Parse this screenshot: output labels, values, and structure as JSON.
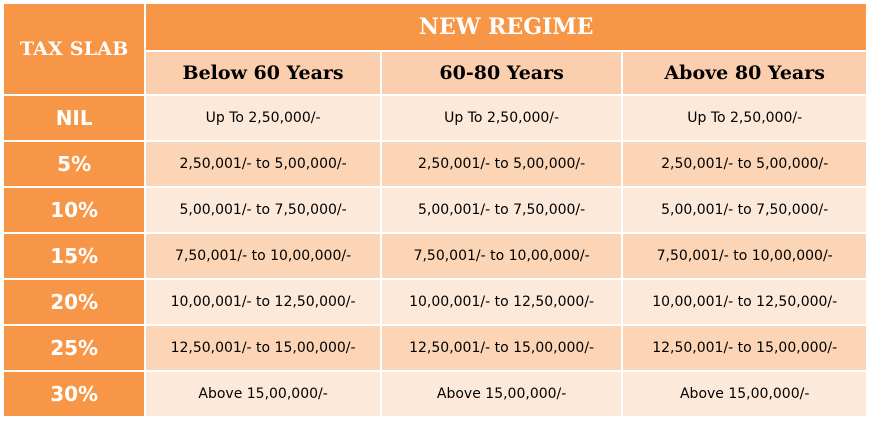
{
  "header": {
    "tax_slab": "TAX SLAB",
    "regime": "NEW REGIME",
    "age_groups": [
      "Below 60 Years",
      "60-80 Years",
      "Above 80 Years"
    ]
  },
  "colors": {
    "header_orange": "#f79646",
    "age_header_peach": "#fbcfae",
    "row_light": "#fde9d9",
    "row_dark": "#fbd5b5"
  },
  "rows": [
    {
      "slab": "NIL",
      "cells": [
        "Up To 2,50,000/-",
        "Up To 2,50,000/-",
        "Up To 2,50,000/-"
      ]
    },
    {
      "slab": "5%",
      "cells": [
        "2,50,001/- to 5,00,000/-",
        "2,50,001/- to 5,00,000/-",
        "2,50,001/- to 5,00,000/-"
      ]
    },
    {
      "slab": "10%",
      "cells": [
        "5,00,001/- to 7,50,000/-",
        "5,00,001/- to 7,50,000/-",
        "5,00,001/- to 7,50,000/-"
      ]
    },
    {
      "slab": "15%",
      "cells": [
        "7,50,001/- to 10,00,000/-",
        "7,50,001/- to 10,00,000/-",
        "7,50,001/- to 10,00,000/-"
      ]
    },
    {
      "slab": "20%",
      "cells": [
        "10,00,001/- to 12,50,000/-",
        "10,00,001/- to 12,50,000/-",
        "10,00,001/- to 12,50,000/-"
      ]
    },
    {
      "slab": "25%",
      "cells": [
        "12,50,001/- to 15,00,000/-",
        "12,50,001/- to 15,00,000/-",
        "12,50,001/- to 15,00,000/-"
      ]
    },
    {
      "slab": "30%",
      "cells": [
        "Above 15,00,000/-",
        "Above 15,00,000/-",
        "Above 15,00,000/-"
      ]
    }
  ]
}
